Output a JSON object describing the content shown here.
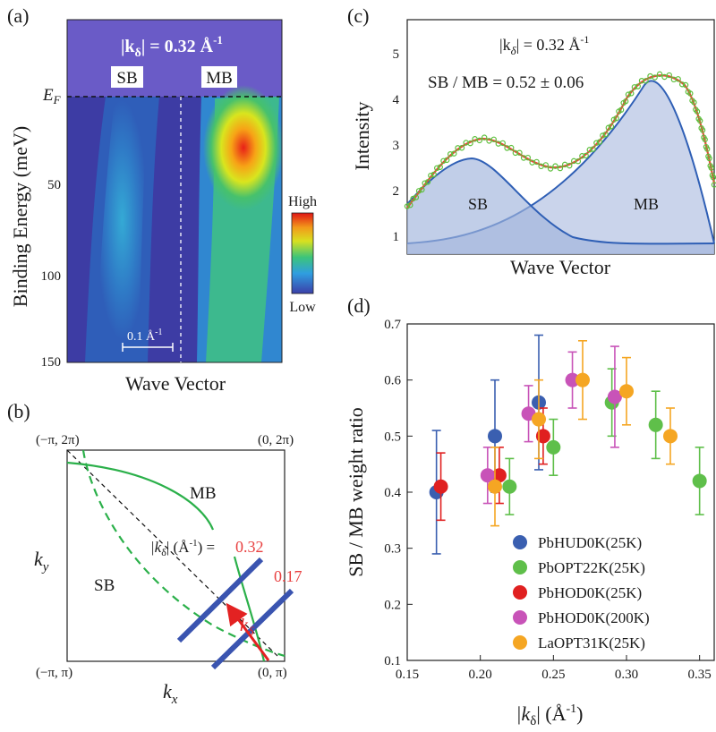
{
  "panels": {
    "a": {
      "label": "(a)",
      "k_label": "|k",
      "k_sub": "δ",
      "k_value": "| = 0.32 Å",
      "k_sup": "-1",
      "sb_label": "SB",
      "mb_label": "MB",
      "ef_label": "E",
      "ef_sub": "F",
      "ylabel": "Binding Energy (meV)",
      "xlabel": "Wave Vector",
      "yticks": [
        "50",
        "100",
        "150"
      ],
      "scalebar": "0.1 Å",
      "scalebar_sup": "-1",
      "colorbar_high": "High",
      "colorbar_low": "Low"
    },
    "b": {
      "label": "(b)",
      "corner_tl": "(−π, 2π)",
      "corner_tr": "(0, 2π)",
      "corner_bl": "(−π, π)",
      "corner_br": "(0, π)",
      "mb_label": "MB",
      "sb_label": "SB",
      "kd_label_pre": "|k",
      "kd_label_sub": "δ",
      "kd_label_post": "| (Å",
      "kd_label_sup": "-1",
      "kd_label_end": ") =",
      "val1": "0.32",
      "val2": "0.17",
      "ky": "k",
      "ky_sub": "y",
      "kx": "k",
      "kx_sub": "x",
      "kdelta": "k",
      "kdelta_sub": "δ"
    },
    "c": {
      "label": "(c)",
      "k_label": "|k",
      "k_sub": "δ",
      "k_value": "| = 0.32 Å",
      "k_sup": "-1",
      "ratio_text": "SB / MB = 0.52 ± 0.06",
      "ylabel": "Intensity",
      "xlabel": "Wave Vector",
      "yticks": [
        "1",
        "2",
        "3",
        "4",
        "5"
      ],
      "sb_label": "SB",
      "mb_label": "MB"
    },
    "d": {
      "label": "(d)",
      "ylabel": "SB / MB weight ratio",
      "xlabel_pre": "|k",
      "xlabel_sub": "δ",
      "xlabel_post": "| (Å",
      "xlabel_sup": "-1",
      "xlabel_end": ")"
    }
  },
  "chart_data": {
    "type": "scatter",
    "xlim": [
      0.15,
      0.36
    ],
    "ylim": [
      0.1,
      0.7
    ],
    "xticks": [
      0.15,
      0.2,
      0.25,
      0.3,
      0.35
    ],
    "yticks": [
      0.1,
      0.2,
      0.3,
      0.4,
      0.5,
      0.6,
      0.7
    ],
    "legend_position": "bottom-right",
    "series": [
      {
        "name": "PbHUD0K(25K)",
        "color": "#3a5fb0",
        "points": [
          {
            "x": 0.17,
            "y": 0.4,
            "err": 0.11
          },
          {
            "x": 0.21,
            "y": 0.5,
            "err": 0.1
          },
          {
            "x": 0.24,
            "y": 0.56,
            "err": 0.12
          }
        ]
      },
      {
        "name": "PbOPT22K(25K)",
        "color": "#5fbf4a",
        "points": [
          {
            "x": 0.22,
            "y": 0.41,
            "err": 0.05
          },
          {
            "x": 0.25,
            "y": 0.48,
            "err": 0.05
          },
          {
            "x": 0.29,
            "y": 0.56,
            "err": 0.06
          },
          {
            "x": 0.32,
            "y": 0.52,
            "err": 0.06
          },
          {
            "x": 0.35,
            "y": 0.42,
            "err": 0.06
          }
        ]
      },
      {
        "name": "PbHOD0K(25K)",
        "color": "#e02020",
        "points": [
          {
            "x": 0.173,
            "y": 0.41,
            "err": 0.06
          },
          {
            "x": 0.213,
            "y": 0.43,
            "err": 0.05
          },
          {
            "x": 0.243,
            "y": 0.5,
            "err": 0.05
          }
        ]
      },
      {
        "name": "PbHOD0K(200K)",
        "color": "#c853b8",
        "points": [
          {
            "x": 0.205,
            "y": 0.43,
            "err": 0.05
          },
          {
            "x": 0.233,
            "y": 0.54,
            "err": 0.05
          },
          {
            "x": 0.263,
            "y": 0.6,
            "err": 0.05
          },
          {
            "x": 0.292,
            "y": 0.57,
            "err": 0.09
          }
        ]
      },
      {
        "name": "LaOPT31K(25K)",
        "color": "#f5a623",
        "points": [
          {
            "x": 0.21,
            "y": 0.41,
            "err": 0.07
          },
          {
            "x": 0.24,
            "y": 0.53,
            "err": 0.07
          },
          {
            "x": 0.27,
            "y": 0.6,
            "err": 0.07
          },
          {
            "x": 0.3,
            "y": 0.58,
            "err": 0.06
          },
          {
            "x": 0.33,
            "y": 0.5,
            "err": 0.05
          }
        ]
      }
    ]
  }
}
